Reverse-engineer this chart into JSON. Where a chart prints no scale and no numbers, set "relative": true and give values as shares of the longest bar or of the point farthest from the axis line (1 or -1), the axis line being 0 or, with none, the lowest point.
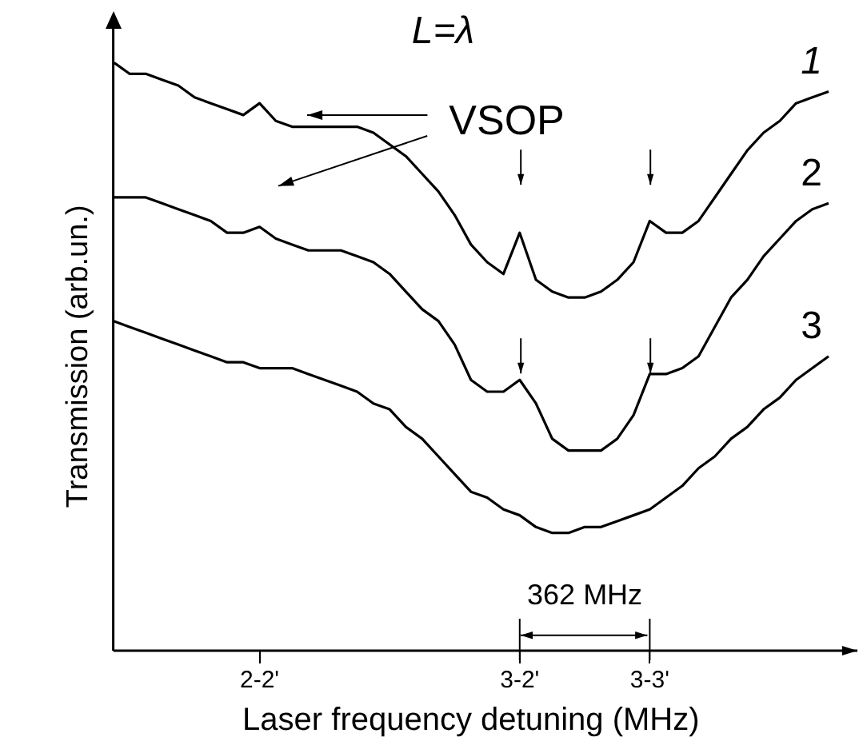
{
  "chart_data": {
    "type": "line",
    "title": "L=λ",
    "xlabel": "Laser frequency detuning (MHz)",
    "ylabel": "Transmission (arb.un.)",
    "relative": true,
    "categories": [
      null,
      null,
      null,
      null,
      null,
      null,
      null,
      null,
      null,
      "2-2'",
      null,
      null,
      null,
      null,
      null,
      null,
      null,
      null,
      null,
      null,
      null,
      null,
      null,
      null,
      null,
      "3-2'",
      null,
      null,
      null,
      null,
      null,
      null,
      null,
      "3-3'",
      null,
      null,
      null,
      null,
      null,
      null,
      null,
      null,
      null,
      null,
      null
    ],
    "series": [
      {
        "name": "1",
        "color": "#000000",
        "values": [
          1.0,
          0.98,
          0.98,
          0.97,
          0.96,
          0.94,
          0.93,
          0.92,
          0.91,
          0.93,
          0.9,
          0.89,
          0.89,
          0.89,
          0.89,
          0.89,
          0.88,
          0.86,
          0.84,
          0.81,
          0.78,
          0.74,
          0.69,
          0.66,
          0.64,
          0.71,
          0.63,
          0.61,
          0.6,
          0.6,
          0.61,
          0.63,
          0.66,
          0.73,
          0.71,
          0.71,
          0.73,
          0.77,
          0.81,
          0.85,
          0.88,
          0.9,
          0.93,
          0.94,
          0.95
        ]
      },
      {
        "name": "2",
        "color": "#000000",
        "values": [
          0.77,
          0.77,
          0.77,
          0.76,
          0.75,
          0.74,
          0.73,
          0.71,
          0.71,
          0.72,
          0.7,
          0.69,
          0.68,
          0.68,
          0.68,
          0.67,
          0.66,
          0.64,
          0.61,
          0.58,
          0.56,
          0.52,
          0.46,
          0.44,
          0.44,
          0.46,
          0.42,
          0.36,
          0.34,
          0.34,
          0.34,
          0.36,
          0.4,
          0.47,
          0.47,
          0.48,
          0.5,
          0.55,
          0.6,
          0.63,
          0.67,
          0.7,
          0.73,
          0.75,
          0.76
        ]
      },
      {
        "name": "3",
        "color": "#000000",
        "values": [
          0.56,
          0.55,
          0.54,
          0.53,
          0.52,
          0.51,
          0.5,
          0.49,
          0.49,
          0.48,
          0.48,
          0.48,
          0.47,
          0.46,
          0.45,
          0.44,
          0.42,
          0.41,
          0.38,
          0.36,
          0.33,
          0.3,
          0.27,
          0.26,
          0.24,
          0.23,
          0.21,
          0.2,
          0.2,
          0.21,
          0.21,
          0.22,
          0.23,
          0.24,
          0.26,
          0.28,
          0.31,
          0.33,
          0.36,
          0.38,
          0.41,
          0.43,
          0.46,
          0.48,
          0.5
        ]
      }
    ],
    "annotations": [
      "VSOP",
      "362 MHz"
    ],
    "legend": false,
    "grid": false,
    "marker": "none",
    "line_style": "solid"
  }
}
